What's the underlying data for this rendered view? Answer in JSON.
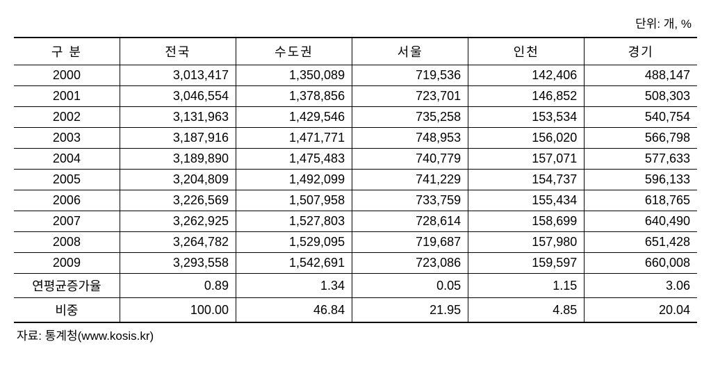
{
  "unit_label": "단위: 개, %",
  "table": {
    "columns": [
      "구 분",
      "전국",
      "수도권",
      "서울",
      "인천",
      "경기"
    ],
    "rows": [
      [
        "2000",
        "3,013,417",
        "1,350,089",
        "719,536",
        "142,406",
        "488,147"
      ],
      [
        "2001",
        "3,046,554",
        "1,378,856",
        "723,701",
        "146,852",
        "508,303"
      ],
      [
        "2002",
        "3,131,963",
        "1,429,546",
        "735,258",
        "153,534",
        "540,754"
      ],
      [
        "2003",
        "3,187,916",
        "1,471,771",
        "748,953",
        "156,020",
        "566,798"
      ],
      [
        "2004",
        "3,189,890",
        "1,475,483",
        "740,779",
        "157,071",
        "577,633"
      ],
      [
        "2005",
        "3,204,809",
        "1,492,099",
        "741,229",
        "154,737",
        "596,133"
      ],
      [
        "2006",
        "3,226,569",
        "1,507,958",
        "733,759",
        "155,434",
        "618,765"
      ],
      [
        "2007",
        "3,262,925",
        "1,527,803",
        "728,614",
        "158,699",
        "640,490"
      ],
      [
        "2008",
        "3,264,782",
        "1,529,095",
        "719,687",
        "157,980",
        "651,428"
      ],
      [
        "2009",
        "3,293,558",
        "1,542,691",
        "723,086",
        "159,597",
        "660,008"
      ],
      [
        "연평균증가율",
        "0.89",
        "1.34",
        "0.05",
        "1.15",
        "3.06"
      ],
      [
        "비중",
        "100.00",
        "46.84",
        "21.95",
        "4.85",
        "20.04"
      ]
    ]
  },
  "source_note": "자료: 통계청(www.kosis.kr)",
  "styling": {
    "background_color": "#ffffff",
    "text_color": "#000000",
    "border_color": "#000000",
    "header_border_top_width": 2,
    "footer_border_bottom_width": 2,
    "cell_border_width": 1,
    "body_font_size": 18,
    "unit_font_size": 17,
    "source_font_size": 17,
    "column_widths_pct": [
      15.5,
      17,
      17,
      17,
      17,
      16.5
    ],
    "header_text_align": "center",
    "first_col_text_align": "center",
    "data_text_align": "right",
    "font_family": "Malgun Gothic"
  }
}
